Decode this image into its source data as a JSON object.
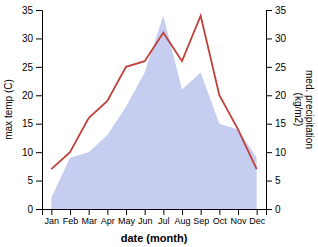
{
  "chart_data": {
    "type": "line",
    "xlabel": "date (month)",
    "ylabel": "max temp (C)",
    "y2label": "med. precipitation\n(kg/m2)",
    "categories": [
      "Jan",
      "Feb",
      "Mar",
      "Apr",
      "May",
      "Jun",
      "Jul",
      "Aug",
      "Sep",
      "Oct",
      "Nov",
      "Dec"
    ],
    "series": [
      {
        "type": "area",
        "axis": "y2",
        "color": "#c5cef0",
        "values": [
          2,
          9,
          10,
          13,
          18,
          24,
          34,
          21,
          24,
          15,
          14,
          9
        ]
      },
      {
        "type": "line",
        "color": "#c0403a",
        "values": [
          7,
          10,
          16,
          19,
          25,
          26,
          31,
          26,
          34,
          20,
          14,
          7
        ]
      }
    ],
    "ylim": [
      0,
      35
    ],
    "yticks": [
      0,
      5,
      10,
      15,
      20,
      25,
      30,
      35
    ],
    "y2lim": [
      0,
      35
    ],
    "y2ticks": [
      0,
      5,
      10,
      15,
      20,
      25,
      30,
      35
    ],
    "grid": false
  }
}
